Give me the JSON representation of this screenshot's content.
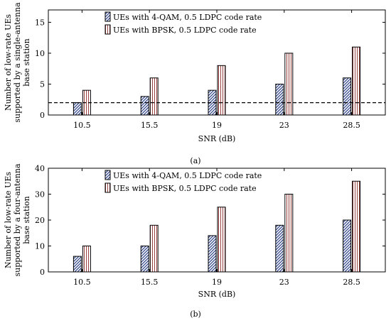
{
  "chart_data": [
    {
      "type": "bar",
      "panel_caption": "(a)",
      "categories": [
        "10.5",
        "15.5",
        "19",
        "23",
        "28.5"
      ],
      "xlabel": "SNR (dB)",
      "ylabel_lines": [
        "Number of low-rate UEs",
        "supported by a single-antenna",
        "base station"
      ],
      "ylim": [
        0,
        17
      ],
      "yticks": [
        0,
        5,
        10,
        15
      ],
      "grid": false,
      "legend_position": "top-center",
      "reference_line": 2,
      "series": [
        {
          "name": "UEs with 4-QAM, 0.5 LDPC code rate",
          "values": [
            2,
            3,
            4,
            5,
            6
          ],
          "pattern": "hatch",
          "color": "#2a3f86"
        },
        {
          "name": "UEs with BPSK, 0.5 LDPC code rate",
          "values": [
            4,
            6,
            8,
            10,
            11
          ],
          "pattern": "vlines",
          "color": "#8a2b2b"
        }
      ]
    },
    {
      "type": "bar",
      "panel_caption": "(b)",
      "categories": [
        "10.5",
        "15.5",
        "19",
        "23",
        "28.5"
      ],
      "xlabel": "SNR (dB)",
      "ylabel_lines": [
        "Number of low-rate UEs",
        "supported by a four-antenna",
        "base station"
      ],
      "ylim": [
        0,
        40
      ],
      "yticks": [
        0,
        10,
        20,
        30,
        40
      ],
      "grid": false,
      "legend_position": "top-center",
      "series": [
        {
          "name": "UEs with 4-QAM, 0.5 LDPC code rate",
          "values": [
            6,
            10,
            14,
            18,
            20
          ],
          "pattern": "hatch",
          "color": "#2a3f86"
        },
        {
          "name": "UEs with BPSK, 0.5 LDPC code rate",
          "values": [
            10,
            18,
            25,
            30,
            35
          ],
          "pattern": "vlines",
          "color": "#8a2b2b"
        }
      ]
    }
  ]
}
